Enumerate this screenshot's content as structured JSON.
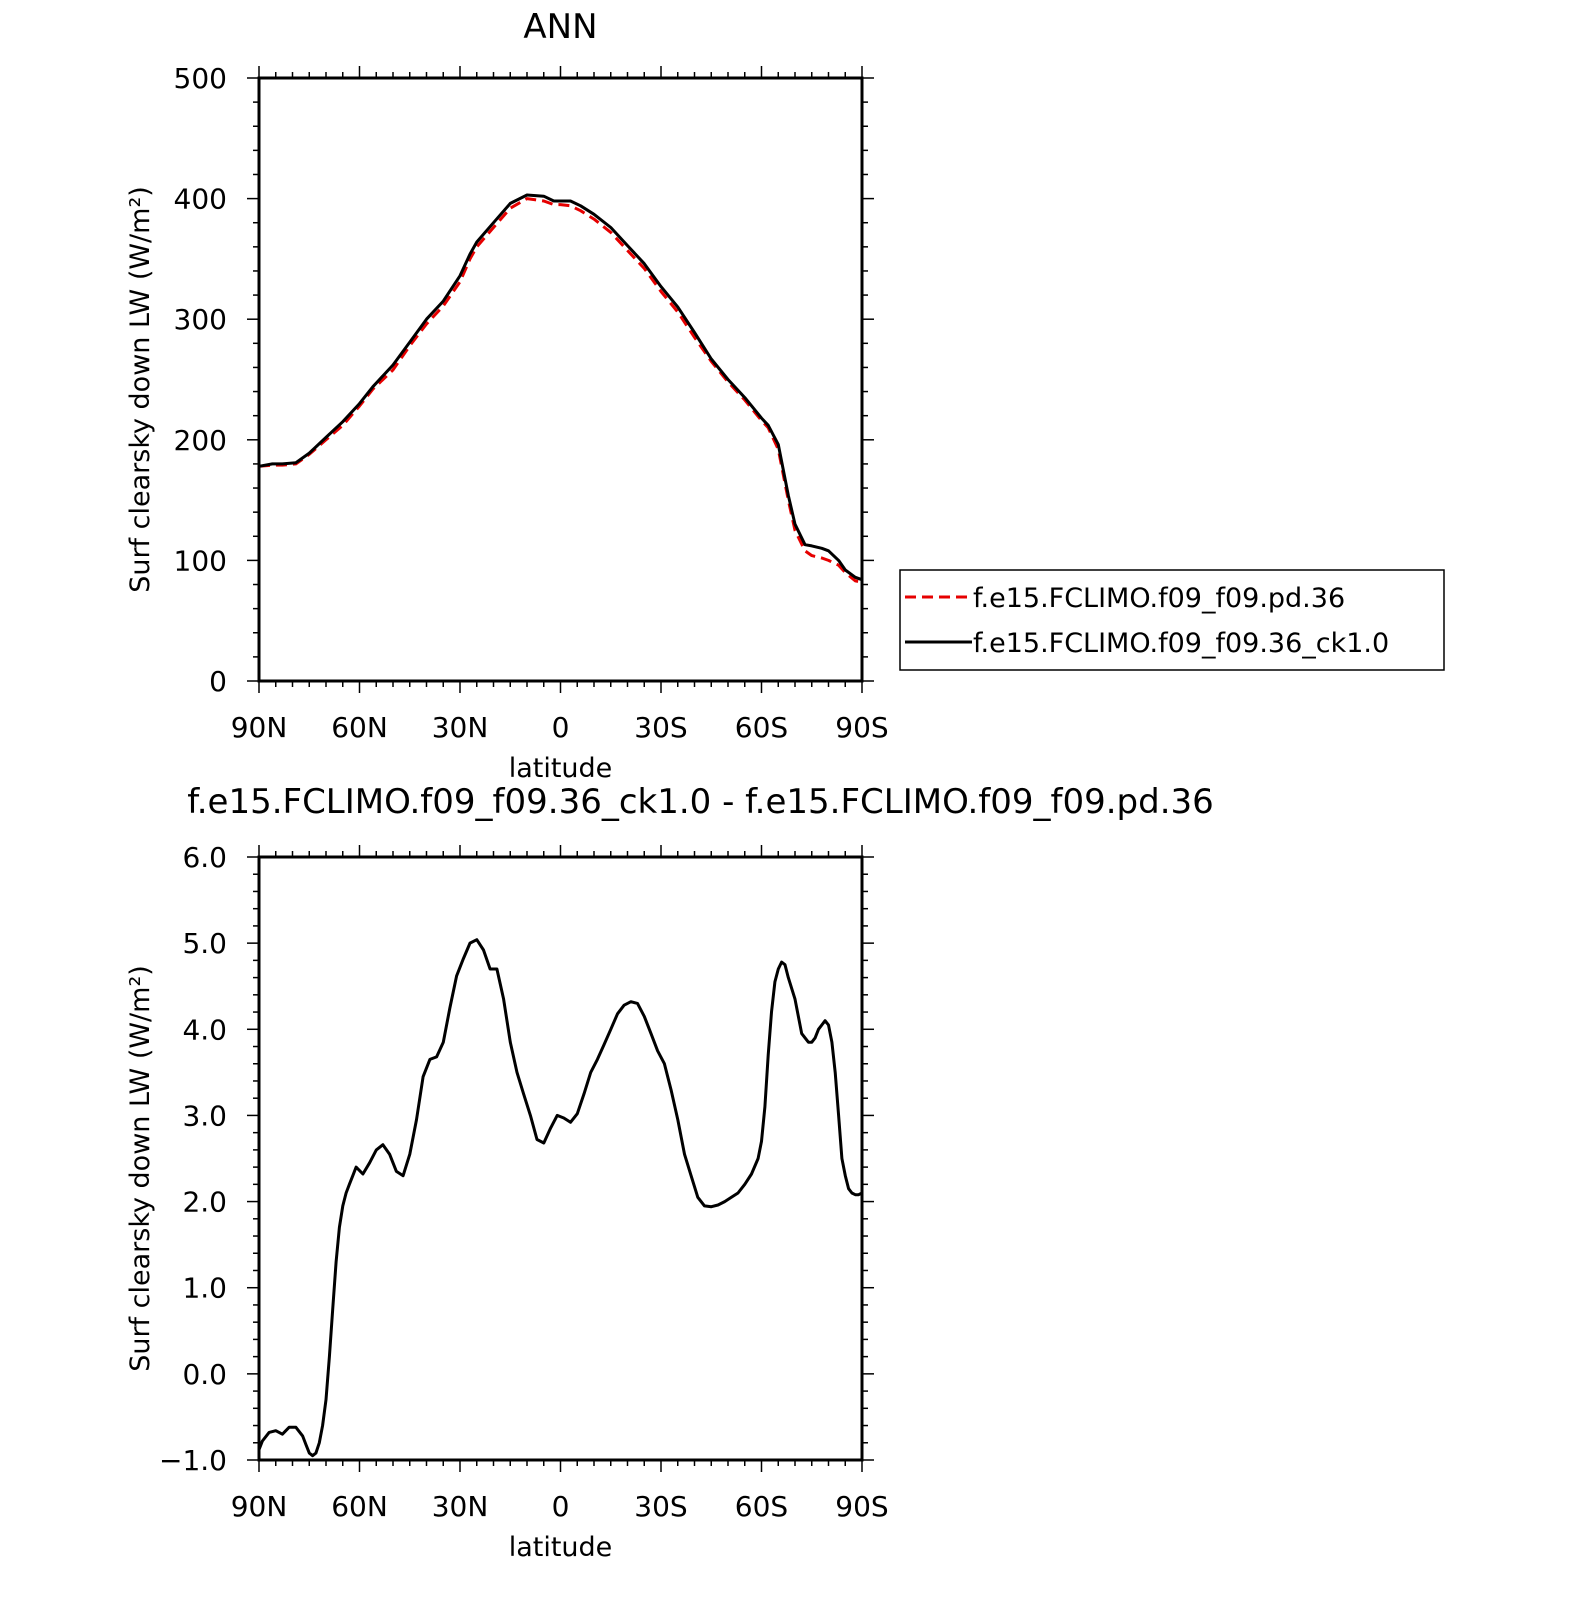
{
  "chart_data": [
    {
      "type": "line",
      "title": "ANN",
      "xlabel": "latitude",
      "ylabel": "Surf clearsky down LW (W/m²)",
      "xlim": [
        90,
        -90
      ],
      "ylim": [
        0,
        500
      ],
      "x_ticks": [
        90,
        60,
        30,
        0,
        -30,
        -60,
        -90
      ],
      "x_tick_labels": [
        "90N",
        "60N",
        "30N",
        "0",
        "30S",
        "60S",
        "90S"
      ],
      "y_ticks": [
        0,
        100,
        200,
        300,
        400,
        500
      ],
      "y_tick_labels": [
        "0",
        "100",
        "200",
        "300",
        "400",
        "500"
      ],
      "legend_position": "right",
      "series": [
        {
          "name": "f.e15.FCLIMO.f09_f09.pd.36",
          "color": "#e60000",
          "dash": "dashed",
          "x": [
            90,
            86,
            83,
            79,
            75,
            70,
            65,
            60,
            56,
            50,
            45,
            40,
            35,
            30,
            27,
            25,
            20,
            15,
            10,
            5,
            2,
            0,
            -3,
            -6,
            -10,
            -15,
            -20,
            -25,
            -30,
            -35,
            -40,
            -45,
            -50,
            -55,
            -60,
            -62,
            -65,
            -68,
            -70,
            -73,
            -75,
            -78,
            -80,
            -83,
            -85,
            -88,
            -90
          ],
          "y": [
            178,
            179,
            179,
            180,
            188,
            200,
            212,
            228,
            242,
            258,
            278,
            296,
            311,
            331,
            350,
            360,
            376,
            392,
            400,
            398,
            395,
            395,
            394,
            390,
            383,
            372,
            357,
            342,
            323,
            306,
            285,
            265,
            248,
            233,
            216,
            210,
            192,
            150,
            125,
            108,
            104,
            102,
            100,
            96,
            90,
            83,
            82
          ]
        },
        {
          "name": "f.e15.FCLIMO.f09_f09.36_ck1.0",
          "color": "#000000",
          "dash": "solid",
          "x": [
            90,
            86,
            83,
            79,
            75,
            70,
            65,
            60,
            56,
            50,
            45,
            40,
            35,
            30,
            27,
            25,
            20,
            15,
            10,
            5,
            2,
            0,
            -3,
            -6,
            -10,
            -15,
            -20,
            -25,
            -30,
            -35,
            -40,
            -45,
            -50,
            -55,
            -60,
            -62,
            -65,
            -68,
            -70,
            -73,
            -75,
            -78,
            -80,
            -83,
            -85,
            -88,
            -90
          ],
          "y": [
            178,
            180,
            180,
            181,
            189,
            202,
            215,
            230,
            244,
            262,
            281,
            300,
            315,
            336,
            354,
            364,
            380,
            396,
            403,
            402,
            398,
            398,
            398,
            394,
            387,
            376,
            361,
            346,
            327,
            310,
            289,
            267,
            250,
            235,
            218,
            212,
            196,
            154,
            130,
            113,
            112,
            110,
            108,
            100,
            92,
            86,
            84
          ]
        }
      ]
    },
    {
      "type": "line",
      "title": "f.e15.FCLIMO.f09_f09.36_ck1.0 - f.e15.FCLIMO.f09_f09.pd.36",
      "xlabel": "latitude",
      "ylabel": "Surf clearsky down LW (W/m²)",
      "xlim": [
        90,
        -90
      ],
      "ylim": [
        -1.0,
        6.0
      ],
      "x_ticks": [
        90,
        60,
        30,
        0,
        -30,
        -60,
        -90
      ],
      "x_tick_labels": [
        "90N",
        "60N",
        "30N",
        "0",
        "30S",
        "60S",
        "90S"
      ],
      "y_ticks": [
        -1,
        0,
        1,
        2,
        3,
        4,
        5,
        6
      ],
      "y_tick_labels": [
        "−1.0",
        "0.0",
        "1.0",
        "2.0",
        "3.0",
        "4.0",
        "5.0",
        "6.0"
      ],
      "series": [
        {
          "name": "",
          "color": "#000000",
          "dash": "solid",
          "x": [
            90,
            89,
            87,
            85,
            83,
            81,
            79,
            77,
            76,
            75,
            74,
            73,
            72,
            71,
            70,
            69,
            68,
            67,
            66,
            65,
            64,
            63,
            62,
            61,
            59,
            57,
            55,
            53,
            51,
            49,
            47,
            45,
            43,
            41,
            39,
            37,
            35,
            33,
            31,
            29,
            27,
            25,
            23,
            21,
            19,
            17,
            15,
            13,
            11,
            9,
            7,
            5,
            3,
            1,
            -1,
            -3,
            -5,
            -7,
            -9,
            -11,
            -13,
            -15,
            -17,
            -19,
            -21,
            -23,
            -25,
            -27,
            -29,
            -31,
            -33,
            -35,
            -37,
            -39,
            -41,
            -43,
            -45,
            -47,
            -49,
            -51,
            -53,
            -55,
            -57,
            -59,
            -60,
            -61,
            -62,
            -63,
            -64,
            -65,
            -66,
            -67,
            -68,
            -70,
            -72,
            -74,
            -75,
            -76,
            -77,
            -78,
            -79,
            -80,
            -81,
            -82,
            -83,
            -84,
            -85,
            -86,
            -87,
            -88,
            -89,
            -90
          ],
          "y": [
            -0.88,
            -0.78,
            -0.68,
            -0.66,
            -0.7,
            -0.62,
            -0.62,
            -0.72,
            -0.82,
            -0.92,
            -0.95,
            -0.92,
            -0.8,
            -0.6,
            -0.3,
            0.2,
            0.75,
            1.3,
            1.7,
            1.95,
            2.1,
            2.2,
            2.3,
            2.4,
            2.32,
            2.45,
            2.6,
            2.66,
            2.55,
            2.35,
            2.3,
            2.55,
            2.95,
            3.45,
            3.65,
            3.68,
            3.85,
            4.25,
            4.62,
            4.82,
            5.0,
            5.04,
            4.92,
            4.7,
            4.7,
            4.35,
            3.85,
            3.5,
            3.25,
            3.0,
            2.72,
            2.68,
            2.85,
            3.0,
            2.97,
            2.92,
            3.02,
            3.25,
            3.5,
            3.65,
            3.82,
            4.0,
            4.18,
            4.28,
            4.32,
            4.3,
            4.15,
            3.95,
            3.75,
            3.6,
            3.3,
            2.95,
            2.55,
            2.3,
            2.05,
            1.95,
            1.94,
            1.96,
            2.0,
            2.05,
            2.1,
            2.2,
            2.32,
            2.5,
            2.7,
            3.1,
            3.7,
            4.2,
            4.55,
            4.7,
            4.78,
            4.75,
            4.6,
            4.35,
            3.95,
            3.85,
            3.85,
            3.9,
            4.0,
            4.05,
            4.1,
            4.05,
            3.85,
            3.5,
            3.0,
            2.5,
            2.3,
            2.15,
            2.1,
            2.08,
            2.08,
            2.1
          ]
        }
      ]
    }
  ]
}
